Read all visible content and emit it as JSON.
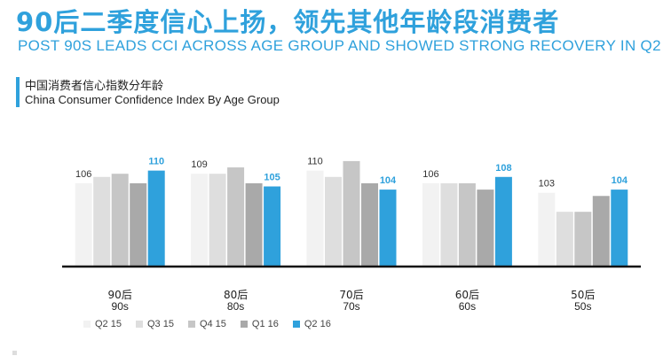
{
  "header": {
    "title_zh": "90后二季度信心上扬，领先其他年龄段消费者",
    "title_en": "POST 90S LEADS CCI ACROSS AGE GROUP AND SHOWED STRONG RECOVERY IN Q2"
  },
  "subtitle": {
    "zh": "中国消费者信心指数分年龄",
    "en": "China Consumer Confidence Index By Age Group"
  },
  "colors": {
    "accent": "#2fa1dc",
    "series": [
      "#f2f2f2",
      "#dedede",
      "#c6c6c6",
      "#a9a9a9",
      "#2fa1dc"
    ]
  },
  "chart_data": {
    "type": "bar",
    "title": "China Consumer Confidence Index By Age Group",
    "categories": [
      {
        "zh": "90后",
        "en": "90s"
      },
      {
        "zh": "80后",
        "en": "80s"
      },
      {
        "zh": "70后",
        "en": "70s"
      },
      {
        "zh": "60后",
        "en": "60s"
      },
      {
        "zh": "50后",
        "en": "50s"
      }
    ],
    "series": [
      {
        "name": "Q2 15",
        "values": [
          106,
          109,
          110,
          106,
          103
        ]
      },
      {
        "name": "Q3 15",
        "values": [
          108,
          109,
          108,
          106,
          97
        ]
      },
      {
        "name": "Q4 15",
        "values": [
          109,
          111,
          113,
          106,
          97
        ]
      },
      {
        "name": "Q1 16",
        "values": [
          106,
          106,
          106,
          104,
          102
        ]
      },
      {
        "name": "Q2 16",
        "values": [
          110,
          105,
          104,
          108,
          104
        ]
      }
    ],
    "labeled_points": [
      {
        "category": 0,
        "series": 0,
        "text": "106"
      },
      {
        "category": 0,
        "series": 4,
        "text": "110"
      },
      {
        "category": 1,
        "series": 0,
        "text": "109"
      },
      {
        "category": 1,
        "series": 4,
        "text": "105"
      },
      {
        "category": 2,
        "series": 0,
        "text": "110"
      },
      {
        "category": 2,
        "series": 4,
        "text": "104"
      },
      {
        "category": 3,
        "series": 0,
        "text": "106"
      },
      {
        "category": 3,
        "series": 4,
        "text": "108"
      },
      {
        "category": 4,
        "series": 0,
        "text": "103"
      },
      {
        "category": 4,
        "series": 4,
        "text": "104"
      }
    ],
    "ylim": [
      80,
      118
    ],
    "xlabel": "",
    "ylabel": "",
    "grid": false,
    "legend": "bottom"
  }
}
